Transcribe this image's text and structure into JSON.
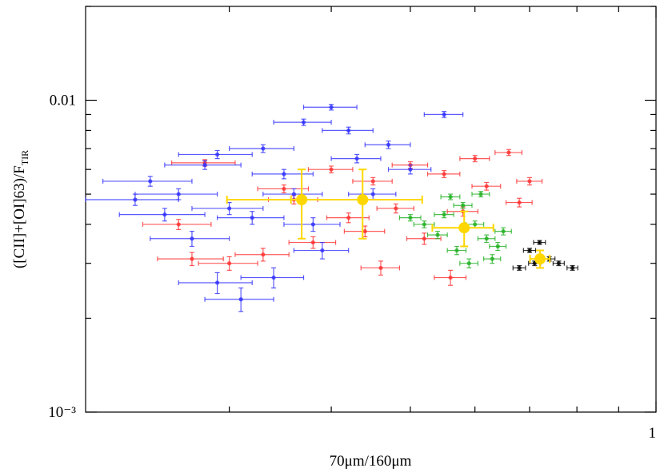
{
  "chart_data": {
    "type": "scatter",
    "xlabel": "70μm/160μm",
    "ylabel": {
      "text": "([CII]+[OI]63)/F",
      "sub": "TIR"
    },
    "xscale": "log",
    "yscale": "log",
    "xlim": [
      0.2,
      1
    ],
    "ylim": [
      0.001,
      0.02
    ],
    "xticks": [
      1
    ],
    "xminor_ticks": [
      0.3,
      0.4,
      0.5,
      0.6,
      0.7,
      0.8,
      0.9
    ],
    "yticks": [
      {
        "value": 0.001,
        "label": "10⁻³"
      },
      {
        "value": 0.01,
        "label": "0.01"
      }
    ],
    "yminor_ticks": [
      0.002,
      0.003,
      0.004,
      0.005,
      0.006,
      0.007,
      0.008,
      0.009,
      0.02
    ],
    "series": [
      {
        "color": "#ff3030",
        "xerr": 0.025,
        "yerr": 0.00015,
        "x": [
          0.28,
          0.35,
          0.4,
          0.45,
          0.5,
          0.55,
          0.6,
          0.66,
          0.7,
          0.68,
          0.62,
          0.48,
          0.42,
          0.38,
          0.33,
          0.3,
          0.27,
          0.52,
          0.56,
          0.46,
          0.36,
          0.58,
          0.26,
          0.44
        ],
        "values": [
          0.0063,
          0.0052,
          0.006,
          0.0055,
          0.0062,
          0.0058,
          0.0065,
          0.0068,
          0.0055,
          0.0047,
          0.0053,
          0.0045,
          0.0042,
          0.0035,
          0.0032,
          0.003,
          0.0031,
          0.0036,
          0.0027,
          0.0029,
          0.0048,
          0.0044,
          0.004,
          0.0038
        ]
      },
      {
        "color": "#3030ff",
        "xerr": 0.03,
        "yerr": 0.0002,
        "x": [
          0.24,
          0.26,
          0.28,
          0.3,
          0.33,
          0.35,
          0.37,
          0.4,
          0.42,
          0.38,
          0.27,
          0.29,
          0.31,
          0.34,
          0.45,
          0.5,
          0.55,
          0.36,
          0.32,
          0.25,
          0.43,
          0.47,
          0.29,
          0.39,
          0.23
        ],
        "values": [
          0.0055,
          0.005,
          0.0062,
          0.0045,
          0.007,
          0.0058,
          0.0085,
          0.0095,
          0.008,
          0.004,
          0.0036,
          0.0026,
          0.0023,
          0.0027,
          0.005,
          0.006,
          0.009,
          0.005,
          0.0042,
          0.0043,
          0.0065,
          0.0072,
          0.0067,
          0.0033,
          0.0048
        ]
      },
      {
        "color": "#20b020",
        "xerr": 0.015,
        "yerr": 0.0001,
        "x": [
          0.52,
          0.55,
          0.58,
          0.6,
          0.62,
          0.64,
          0.57,
          0.54,
          0.61,
          0.59,
          0.63,
          0.5,
          0.65,
          0.56
        ],
        "values": [
          0.004,
          0.0043,
          0.0046,
          0.004,
          0.0036,
          0.0034,
          0.0033,
          0.0037,
          0.005,
          0.003,
          0.0031,
          0.0042,
          0.0038,
          0.0049
        ]
      },
      {
        "color": "#000000",
        "xerr": 0.012,
        "yerr": 5e-05,
        "x": [
          0.68,
          0.7,
          0.72,
          0.74,
          0.76,
          0.79,
          0.71
        ],
        "values": [
          0.0029,
          0.0033,
          0.0035,
          0.0031,
          0.003,
          0.0029,
          0.003
        ]
      },
      {
        "color": "#ffd700",
        "xerr": [
          0.07,
          0.08,
          0.05,
          0.02
        ],
        "yerr": [
          0.0012,
          0.0012,
          0.0005,
          0.0002
        ],
        "x": [
          0.368,
          0.437,
          0.582,
          0.721
        ],
        "values": [
          0.0048,
          0.0048,
          0.0039,
          0.0031
        ]
      }
    ]
  }
}
